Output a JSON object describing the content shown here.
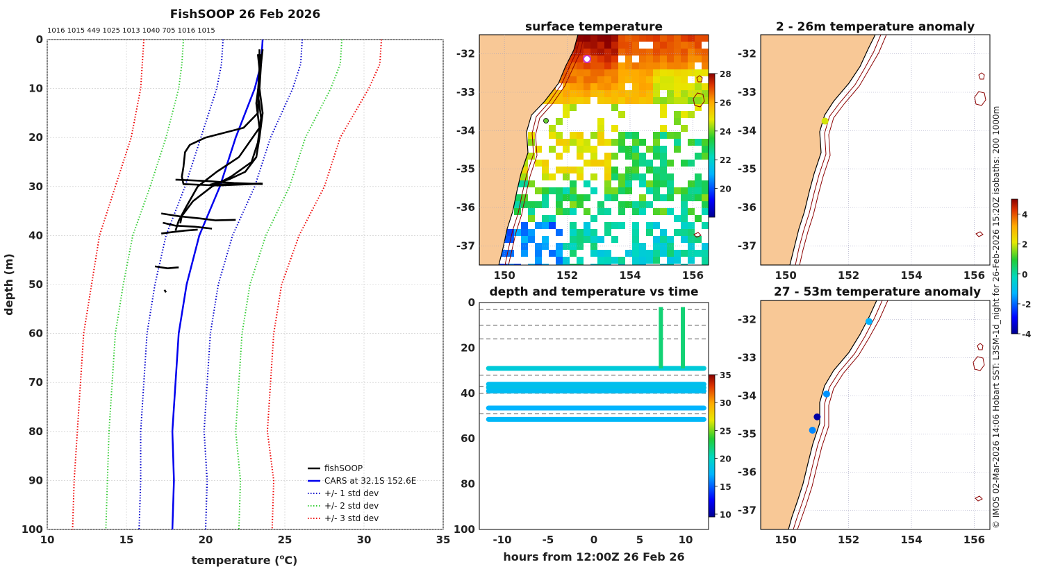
{
  "credit": "© IMOS 02-Mar-2026 14:06 Hobart SST: L3SM-1d_night for 26-Feb-2026 15:20Z isobaths: 200  1000m",
  "chart_data": [
    {
      "id": "profile",
      "type": "line",
      "title": "FishSOOP 26 Feb 2026",
      "drop_labels": "1016 1015 449 1025 1013 1040 705 1016 1015",
      "xlabel": "temperature (",
      "xlabel_sup": "o",
      "xlabel_unit": "C)",
      "ylabel": "depth (m)",
      "xlim": [
        10,
        35
      ],
      "ylim": [
        0,
        100
      ],
      "yreversed": true,
      "xticks": [
        10,
        15,
        20,
        25,
        30,
        35
      ],
      "yticks": [
        0,
        10,
        20,
        30,
        40,
        50,
        60,
        70,
        80,
        90,
        100
      ],
      "legend_position": "bottom-right",
      "depth": [
        0,
        5,
        10,
        20,
        30,
        40,
        50,
        60,
        70,
        80,
        90,
        100
      ],
      "cars_mean": [
        23.6,
        23.5,
        23.1,
        21.9,
        20.9,
        19.6,
        18.8,
        18.3,
        18.1,
        17.9,
        18.0,
        17.9
      ],
      "cars_sd": [
        2.5,
        2.5,
        2.4,
        2.2,
        2.2,
        2.1,
        2.0,
        2.0,
        2.0,
        2.0,
        2.1,
        2.1
      ],
      "series": [
        {
          "name": "fishSOOP",
          "style": "solid",
          "color": "#000000"
        },
        {
          "name": "CARS at 32.1S 152.6E",
          "style": "solid",
          "color": "#0000ee"
        },
        {
          "name": "+/- 1 std dev",
          "style": "dotted",
          "color": "#0000cc"
        },
        {
          "name": "+/- 2 std dev",
          "style": "dotted",
          "color": "#33cc33"
        },
        {
          "name": "+/- 3 std dev",
          "style": "dotted",
          "color": "#ee0000"
        }
      ],
      "fishsoop_profiles": [
        {
          "t": [
            23.6,
            23.5,
            23.4,
            23.6,
            23.4,
            23.2,
            22.5,
            21.5,
            20.7,
            20.3,
            23.5
          ],
          "d": [
            2,
            5,
            10,
            15,
            20,
            24,
            27,
            28.5,
            29.3,
            29.6,
            29.4
          ]
        },
        {
          "t": [
            23.3,
            23.4,
            23.3,
            23.5,
            23.3,
            22.9,
            21.6,
            20.4,
            19.2,
            18.5,
            18.4
          ],
          "d": [
            3,
            6,
            11,
            16,
            21,
            25,
            28,
            30,
            33,
            36,
            37.5
          ]
        },
        {
          "t": [
            23.5,
            23.4,
            23.2,
            23.4,
            22.1,
            20.7,
            19.5,
            18.8,
            18.3,
            18.1
          ],
          "d": [
            3,
            8,
            13,
            18,
            24,
            27,
            30,
            34,
            37,
            39
          ]
        },
        {
          "t": [
            23.4,
            23.4,
            23.3,
            22.4,
            20.0,
            19.0,
            18.7,
            18.6,
            18.5,
            18.6,
            20.8,
            23.6
          ],
          "d": [
            2,
            7,
            15,
            18,
            20,
            21.5,
            23,
            26,
            28,
            29.5,
            29.8,
            29.4
          ]
        },
        {
          "t": [
            18.1,
            20.2,
            21.8,
            23.6
          ],
          "d": [
            28.6,
            28.9,
            29.3,
            29.5
          ]
        },
        {
          "t": [
            17.2,
            18.4,
            19.6,
            20.6,
            21.9
          ],
          "d": [
            35.5,
            36.1,
            36.5,
            36.9,
            36.8
          ]
        },
        {
          "t": [
            17.3,
            18.1,
            19.3,
            20.4
          ],
          "d": [
            37.4,
            38.0,
            38.2,
            38.6
          ]
        },
        {
          "t": [
            17.2,
            17.9,
            18.7,
            19.5
          ],
          "d": [
            39.6,
            39.3,
            39.0,
            38.8
          ]
        },
        {
          "t": [
            16.8,
            17.6,
            18.3
          ],
          "d": [
            46.3,
            46.7,
            46.5
          ]
        },
        {
          "t": [
            17.4,
            17.5
          ],
          "d": [
            51.1,
            51.6
          ]
        }
      ]
    },
    {
      "id": "sst_map",
      "type": "heatmap",
      "title": "surface temperature",
      "xticks": [
        150,
        152,
        154,
        156
      ],
      "yticks": [
        -32,
        -33,
        -34,
        -35,
        -36,
        -37
      ],
      "xlim": [
        149.2,
        156.5
      ],
      "ylim": [
        -37.5,
        -31.5
      ],
      "colorbar_ticks": [
        20,
        22,
        24,
        26,
        28
      ],
      "colorbar_range": [
        18,
        28
      ],
      "isobaths_m": [
        200,
        1000
      ]
    },
    {
      "id": "time_series",
      "type": "scatter",
      "title": "depth and temperature vs time",
      "xlabel": "hours from 12:00Z 26 Feb 26",
      "xticks": [
        -10,
        -5,
        0,
        5,
        10
      ],
      "yticks": [
        0,
        20,
        40,
        60,
        80,
        100
      ],
      "xlim": [
        -12.5,
        12.5
      ],
      "ylim": [
        0,
        100
      ],
      "yreversed": true,
      "colorbar_ticks": [
        10,
        15,
        20,
        25,
        30,
        35
      ],
      "colorbar_range": [
        9.5,
        35
      ],
      "dashed_depths": [
        3,
        10,
        16,
        32,
        37,
        40,
        49
      ],
      "tracks": [
        {
          "depth": 29,
          "temp": 19
        },
        {
          "depth": 36,
          "temp": 18
        },
        {
          "depth": 37.5,
          "temp": 18.2
        },
        {
          "depth": 39,
          "temp": 17.8
        },
        {
          "depth": 46.5,
          "temp": 17.2
        },
        {
          "depth": 51.5,
          "temp": 17.5
        }
      ],
      "vertical_casts": [
        {
          "time": 7.3,
          "depth_from": 2,
          "depth_to": 29,
          "temp": 22
        },
        {
          "time": 9.7,
          "depth_from": 2,
          "depth_to": 29,
          "temp": 22
        }
      ]
    },
    {
      "id": "anom_2_26",
      "type": "scatter",
      "title": "2 - 26m temperature anomaly",
      "xticks": [
        150,
        152,
        154,
        156
      ],
      "yticks": [
        -32,
        -33,
        -34,
        -35,
        -36,
        -37
      ],
      "points": [
        {
          "lon": 151.25,
          "lat": -33.75,
          "anomaly": 2.0
        }
      ]
    },
    {
      "id": "anom_27_53",
      "type": "scatter",
      "title": "27 - 53m temperature anomaly",
      "xticks": [
        150,
        152,
        154,
        156
      ],
      "yticks": [
        -32,
        -33,
        -34,
        -35,
        -36,
        -37
      ],
      "points": [
        {
          "lon": 152.65,
          "lat": -32.05,
          "anomaly": -1.3
        },
        {
          "lon": 151.3,
          "lat": -33.95,
          "anomaly": -1.6
        },
        {
          "lon": 151.0,
          "lat": -34.55,
          "anomaly": -3.8
        },
        {
          "lon": 150.85,
          "lat": -34.9,
          "anomaly": -1.7
        }
      ],
      "colorbar_ticks": [
        -4,
        -2,
        0,
        2,
        4
      ],
      "colorbar_range": [
        -4,
        5
      ]
    }
  ]
}
